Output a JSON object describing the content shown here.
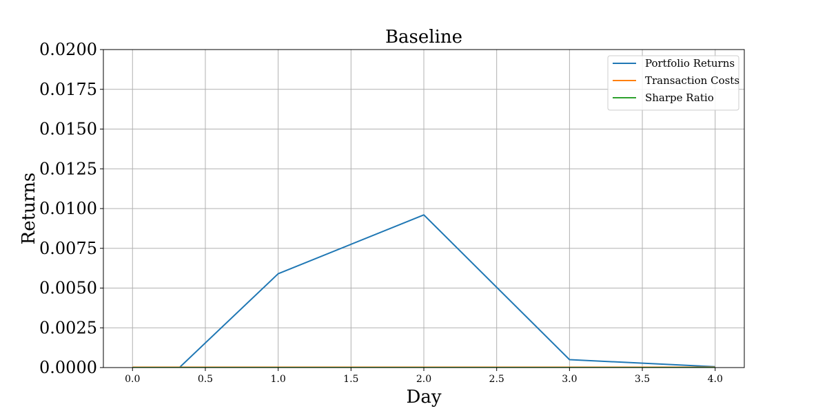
{
  "chart_data": {
    "type": "line",
    "title": "Baseline",
    "xlabel": "Day",
    "ylabel": "Returns",
    "xlim": [
      -0.2,
      4.2
    ],
    "ylim": [
      0,
      0.02
    ],
    "xticks": [
      0.0,
      0.5,
      1.0,
      1.5,
      2.0,
      2.5,
      3.0,
      3.5,
      4.0
    ],
    "xtick_labels": [
      "0.0",
      "0.5",
      "1.0",
      "1.5",
      "2.0",
      "2.5",
      "3.0",
      "3.5",
      "4.0"
    ],
    "yticks": [
      0.0,
      0.0025,
      0.005,
      0.0075,
      0.01,
      0.0125,
      0.015,
      0.0175,
      0.02
    ],
    "ytick_labels": [
      "0.0000",
      "0.0025",
      "0.0050",
      "0.0075",
      "0.0100",
      "0.0125",
      "0.0150",
      "0.0175",
      "0.0200"
    ],
    "grid": true,
    "legend_position": "top-right",
    "series": [
      {
        "name": "Portfolio Returns",
        "color": "#1f77b4",
        "x": [
          0,
          1,
          2,
          3,
          4
        ],
        "y": [
          -0.0028,
          0.0059,
          0.0096,
          0.0005,
          5e-05
        ]
      },
      {
        "name": "Transaction Costs",
        "color": "#ff7f0e",
        "x": [
          0,
          1,
          2,
          3,
          4
        ],
        "y": [
          2e-05,
          2e-05,
          2e-05,
          2e-05,
          2e-05
        ]
      },
      {
        "name": "Sharpe Ratio",
        "color": "#2ca02c",
        "x": [
          0,
          1,
          2,
          3,
          4
        ],
        "y": [
          0,
          0,
          0,
          0,
          0
        ]
      }
    ]
  }
}
